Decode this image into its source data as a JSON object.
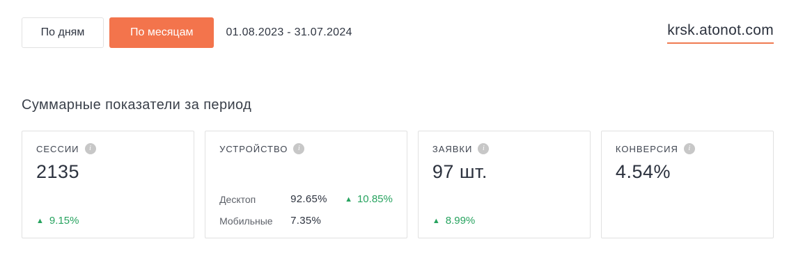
{
  "toolbar": {
    "day_button_label": "По дням",
    "month_button_label": "По месяцам",
    "date_range": "01.08.2023 - 31.07.2024",
    "domain": "krsk.atonot.com"
  },
  "section": {
    "title": "Суммарные показатели за период"
  },
  "cards": {
    "sessions": {
      "label": "СЕССИИ",
      "value": "2135",
      "change": "9.15%"
    },
    "devices": {
      "label": "УСТРОЙСТВО",
      "rows": [
        {
          "name": "Десктоп",
          "value": "92.65%",
          "change": "10.85%"
        },
        {
          "name": "Мобильные",
          "value": "7.35%",
          "change": ""
        }
      ]
    },
    "leads": {
      "label": "ЗАЯВКИ",
      "value": "97 шт.",
      "change": "8.99%"
    },
    "conversion": {
      "label": "КОНВЕРСИЯ",
      "value": "4.54%",
      "change": ""
    }
  },
  "icons": {
    "info_glyph": "i",
    "up_triangle": "▲"
  },
  "colors": {
    "accent_orange": "#f3744c",
    "underline_orange": "#ef7a50",
    "positive_green": "#27a35f",
    "text_dark": "#2c323e",
    "label_gray": "#5d6169",
    "border_gray": "#e1e1e1"
  }
}
